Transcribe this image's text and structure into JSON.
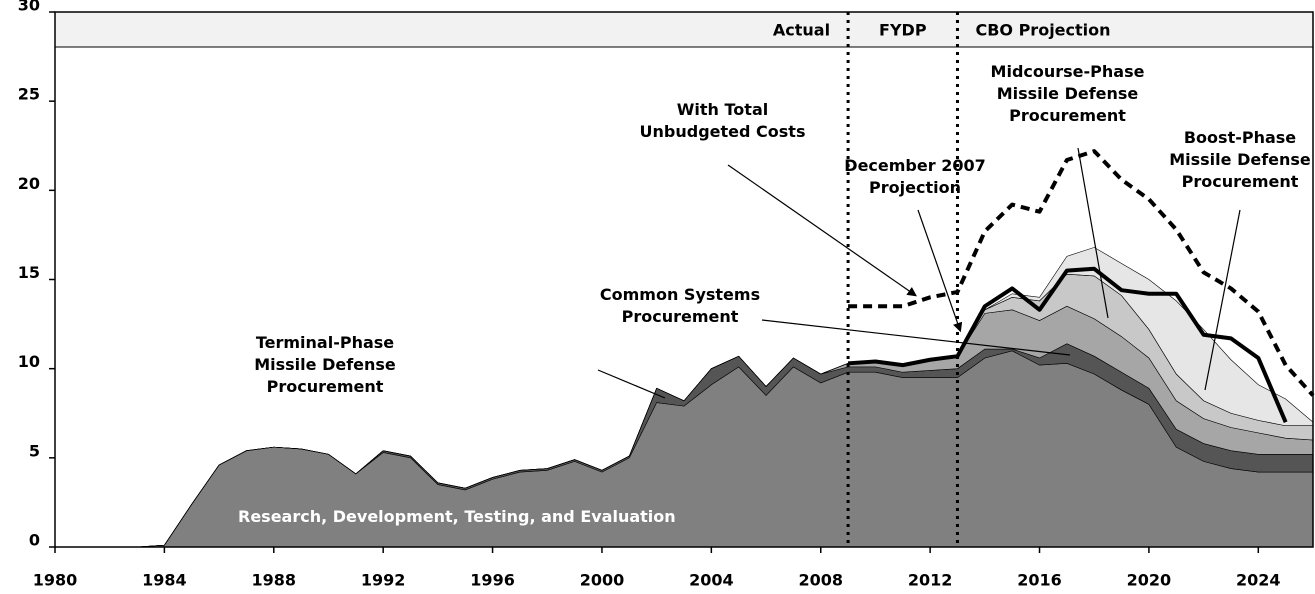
{
  "chart_data": {
    "type": "stacked_area",
    "x": [
      1980,
      1981,
      1982,
      1983,
      1984,
      1985,
      1986,
      1987,
      1988,
      1989,
      1990,
      1991,
      1992,
      1993,
      1994,
      1995,
      1996,
      1997,
      1998,
      1999,
      2000,
      2001,
      2002,
      2003,
      2004,
      2005,
      2006,
      2007,
      2008,
      2009,
      2010,
      2011,
      2012,
      2013,
      2014,
      2015,
      2016,
      2017,
      2018,
      2019,
      2020,
      2021,
      2022,
      2023,
      2024,
      2025,
      2026
    ],
    "series": [
      {
        "name": "Research, Development, Testing, and Evaluation",
        "color": "#808080",
        "values": [
          0,
          0,
          0,
          0,
          0.1,
          2.4,
          4.6,
          5.4,
          5.6,
          5.5,
          5.2,
          4.1,
          5.3,
          5.0,
          3.5,
          3.2,
          3.8,
          4.2,
          4.3,
          4.8,
          4.2,
          5.0,
          8.1,
          7.9,
          9.1,
          10.1,
          8.5,
          10.1,
          9.2,
          9.8,
          9.8,
          9.5,
          9.5,
          9.5,
          10.6,
          11.0,
          10.2,
          10.3,
          9.7,
          8.8,
          8.0,
          5.6,
          4.8,
          4.4,
          4.2,
          4.2,
          4.2
        ]
      },
      {
        "name": "Terminal-Phase Missile Defense Procurement",
        "color": "#555555",
        "values": [
          0,
          0,
          0,
          0,
          0,
          0,
          0,
          0,
          0,
          0,
          0,
          0,
          0.1,
          0.1,
          0.1,
          0.1,
          0.1,
          0.1,
          0.1,
          0.1,
          0.1,
          0.1,
          0.8,
          0.3,
          0.9,
          0.6,
          0.5,
          0.5,
          0.5,
          0.3,
          0.3,
          0.3,
          0.4,
          0.5,
          0.5,
          0.1,
          0.4,
          1.1,
          1.0,
          1.0,
          0.9,
          1.0,
          1.0,
          1.0,
          1.0,
          1.0,
          1.0
        ]
      },
      {
        "name": "Common Systems Procurement",
        "color": "#a6a6a6",
        "values": [
          0,
          0,
          0,
          0,
          0,
          0,
          0,
          0,
          0,
          0,
          0,
          0,
          0,
          0,
          0,
          0,
          0,
          0,
          0,
          0,
          0,
          0,
          0,
          0,
          0,
          0,
          0,
          0,
          0,
          0.2,
          0.3,
          0.4,
          0.6,
          0.7,
          2.0,
          2.2,
          2.1,
          2.1,
          2.1,
          2.0,
          1.7,
          1.6,
          1.4,
          1.3,
          1.2,
          0.9,
          0.8
        ]
      },
      {
        "name": "Midcourse-Phase Missile Defense Procurement",
        "color": "#c8c8c8",
        "values": [
          0,
          0,
          0,
          0,
          0,
          0,
          0,
          0,
          0,
          0,
          0,
          0,
          0,
          0,
          0,
          0,
          0,
          0,
          0,
          0,
          0,
          0,
          0,
          0,
          0,
          0,
          0,
          0,
          0,
          0,
          0,
          0,
          0,
          0,
          0.2,
          0.7,
          1.1,
          1.8,
          2.4,
          2.3,
          1.6,
          1.5,
          1.0,
          0.8,
          0.7,
          0.7,
          0.8
        ]
      },
      {
        "name": "Boost-Phase Missile Defense Procurement",
        "color": "#e6e6e6",
        "values": [
          0,
          0,
          0,
          0,
          0,
          0,
          0,
          0,
          0,
          0,
          0,
          0,
          0,
          0,
          0,
          0,
          0,
          0,
          0,
          0,
          0,
          0,
          0,
          0,
          0,
          0,
          0,
          0,
          0,
          0,
          0,
          0,
          0,
          0,
          0,
          0.2,
          0.2,
          1.0,
          1.6,
          1.8,
          2.8,
          4.1,
          4.0,
          3.0,
          2.0,
          1.5,
          0.2
        ]
      }
    ],
    "lines": [
      {
        "name": "December 2007 Projection",
        "color": "#000000",
        "dash": false,
        "values": [
          null,
          null,
          null,
          null,
          null,
          null,
          null,
          null,
          null,
          null,
          null,
          null,
          null,
          null,
          null,
          null,
          null,
          null,
          null,
          null,
          null,
          null,
          null,
          null,
          null,
          null,
          null,
          null,
          null,
          10.3,
          10.4,
          10.2,
          10.5,
          10.7,
          13.5,
          14.5,
          13.3,
          15.5,
          15.6,
          14.4,
          14.2,
          14.2,
          11.9,
          11.7,
          10.6,
          7.0,
          null
        ]
      },
      {
        "name": "With Total Unbudgeted Costs",
        "color": "#000000",
        "dash": true,
        "values": [
          null,
          null,
          null,
          null,
          null,
          null,
          null,
          null,
          null,
          null,
          null,
          null,
          null,
          null,
          null,
          null,
          null,
          null,
          null,
          null,
          null,
          null,
          null,
          null,
          null,
          null,
          null,
          null,
          null,
          13.5,
          13.5,
          13.5,
          14.0,
          14.3,
          17.7,
          19.2,
          18.8,
          21.7,
          22.2,
          20.6,
          19.5,
          17.8,
          15.4,
          14.5,
          13.2,
          10.2,
          8.5
        ]
      }
    ],
    "periods": [
      "Actual",
      "FYDP",
      "CBO Projection"
    ],
    "period_boundaries": [
      2009,
      2013
    ],
    "xlim": [
      1980,
      2026
    ],
    "ylim": [
      0,
      30
    ],
    "xticks": [
      1980,
      1984,
      1988,
      1992,
      1996,
      2000,
      2004,
      2008,
      2012,
      2016,
      2020,
      2024
    ],
    "yticks": [
      0,
      5,
      10,
      15,
      20,
      25,
      30
    ],
    "grid": false
  }
}
